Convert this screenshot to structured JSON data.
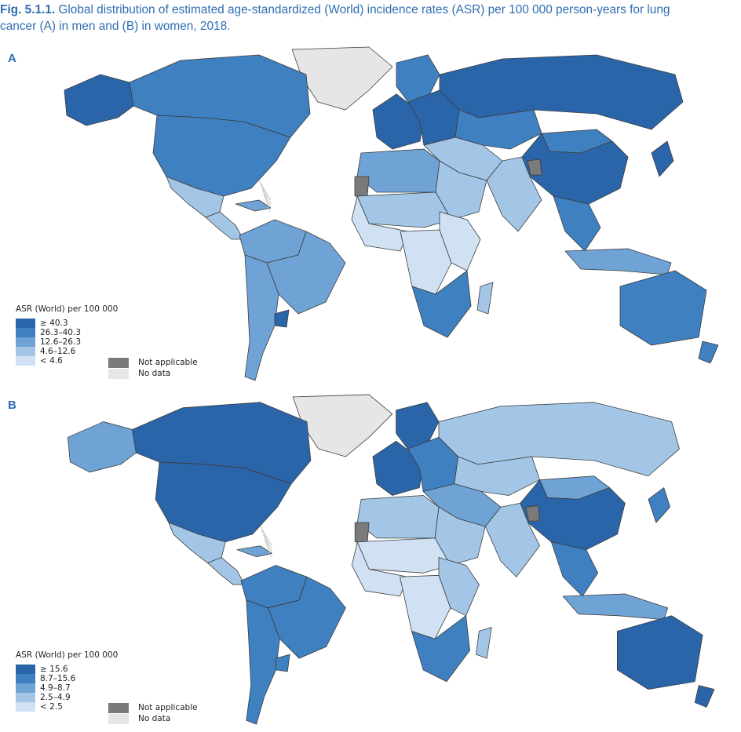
{
  "caption": {
    "fig": "Fig. 5.1.1.",
    "line1": " Global distribution of estimated age-standardized (World) incidence rates (ASR) per 100 000 person-years for lung",
    "line2": "cancer (A) in men and (B) in women, 2018."
  },
  "colors": {
    "c1": "#2b65a9",
    "c2": "#3f80c1",
    "c3": "#6fa3d6",
    "c4": "#a3c6e6",
    "c5": "#cfe1f2",
    "not_applicable": "#7a7a7a",
    "no_data": "#e6e6e6",
    "border": "#3c3c3c"
  },
  "panels": [
    {
      "label": "A",
      "legend_title": "ASR (World) per 100 000",
      "classes": [
        "≥ 40.3",
        "26.3–40.3",
        "12.6–26.3",
        "4.6–12.6",
        "< 4.6"
      ],
      "not_applicable": "Not applicable",
      "no_data": "No data"
    },
    {
      "label": "B",
      "legend_title": "ASR (World) per 100 000",
      "classes": [
        "≥ 15.6",
        "8.7–15.6",
        "4.9–8.7",
        "2.5–4.9",
        "< 2.5"
      ],
      "not_applicable": "Not applicable",
      "no_data": "No data"
    }
  ],
  "regions": {
    "A": {
      "alaska": 1,
      "canada": 2,
      "usa": 2,
      "greenland": "nd",
      "mexico": 4,
      "central_america": 4,
      "caribbean": 3,
      "south_america_north": 3,
      "brazil": 3,
      "south_america_south": 3,
      "uruguay": 1,
      "north_africa": 3,
      "sahara": 4,
      "west_africa": 5,
      "central_africa": 5,
      "east_africa": 5,
      "southern_africa": 2,
      "madagascar": 4,
      "europe_west": 1,
      "europe_east": 1,
      "scandinavia": 2,
      "russia": 1,
      "middle_east": 4,
      "arabia": 4,
      "central_asia": 2,
      "india": 4,
      "mongolia": 2,
      "china": 1,
      "southeast_asia": 2,
      "indonesia": 3,
      "japan": 1,
      "australia": 2,
      "new_zealand": 2,
      "western_sahara": "na",
      "kashmir": "na"
    },
    "B": {
      "alaska": 3,
      "canada": 1,
      "usa": 1,
      "greenland": "nd",
      "mexico": 4,
      "central_america": 4,
      "caribbean": 3,
      "south_america_north": 2,
      "brazil": 2,
      "south_america_south": 2,
      "uruguay": 2,
      "north_africa": 4,
      "sahara": 5,
      "west_africa": 5,
      "central_africa": 5,
      "east_africa": 4,
      "southern_africa": 2,
      "madagascar": 4,
      "europe_west": 1,
      "europe_east": 2,
      "scandinavia": 1,
      "russia": 4,
      "middle_east": 3,
      "arabia": 4,
      "central_asia": 4,
      "india": 4,
      "mongolia": 3,
      "china": 1,
      "southeast_asia": 2,
      "indonesia": 3,
      "japan": 2,
      "australia": 1,
      "new_zealand": 1,
      "western_sahara": "na",
      "kashmir": "na"
    }
  }
}
